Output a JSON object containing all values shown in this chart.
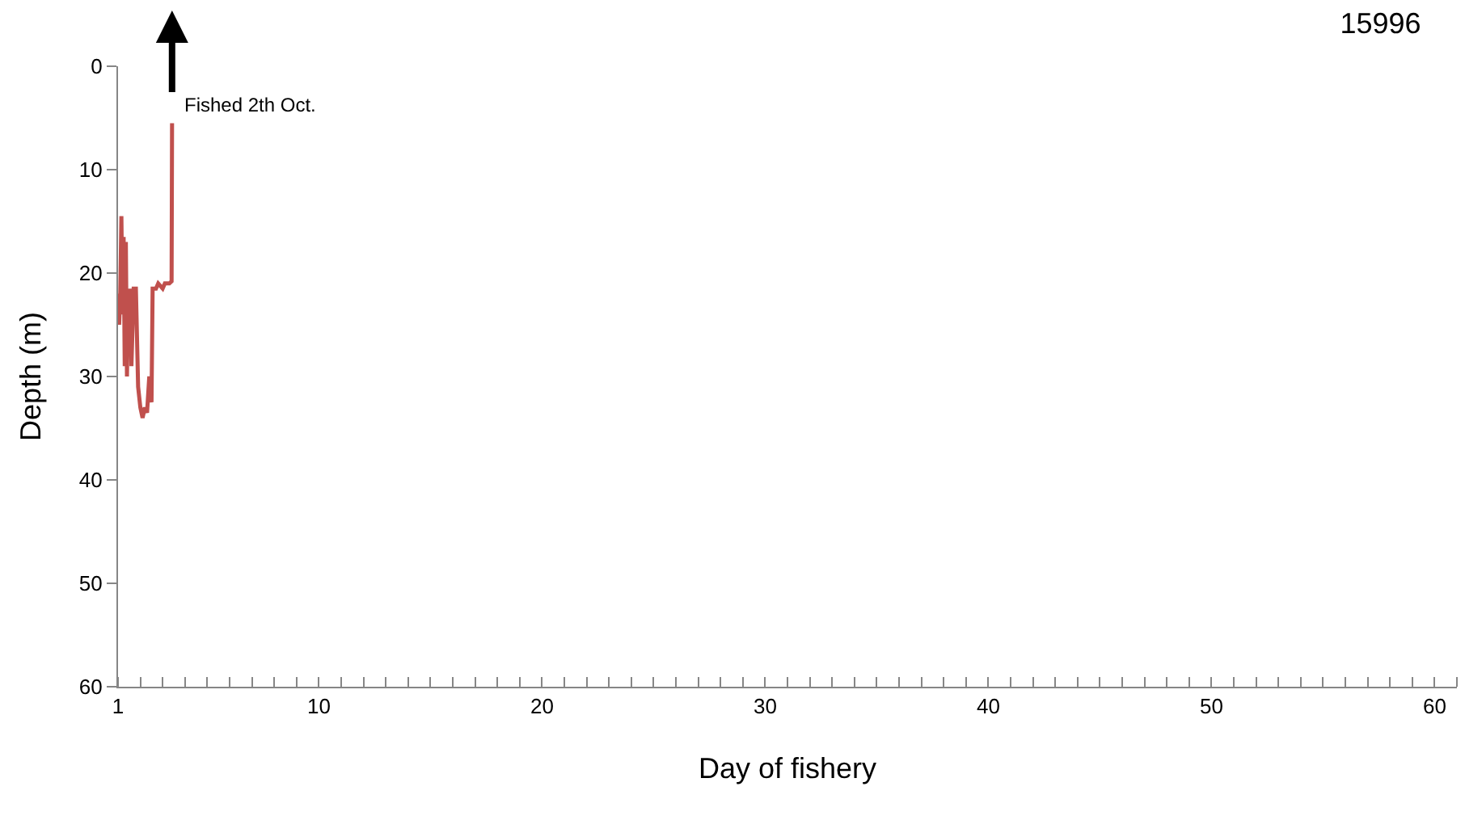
{
  "chart_data": {
    "type": "line",
    "title": "15996",
    "xlabel": "Day of fishery",
    "ylabel": "Depth (m)",
    "x": [
      1.0,
      1.05,
      1.1,
      1.15,
      1.2,
      1.25,
      1.3,
      1.35,
      1.4,
      1.45,
      1.5,
      1.55,
      1.6,
      1.7,
      1.8,
      1.9,
      2.0,
      2.1,
      2.2,
      2.3,
      2.4,
      2.5,
      2.55,
      2.7,
      2.8,
      3.0,
      3.1,
      3.3,
      3.4,
      3.42
    ],
    "series": [
      {
        "color": "#c0504d",
        "values": [
          22,
          25,
          22,
          14.5,
          24,
          16.5,
          29,
          17,
          30,
          22,
          28,
          21.5,
          29,
          21.5,
          21.5,
          31,
          33,
          34,
          33,
          33.5,
          30,
          32.5,
          21.5,
          21.5,
          21,
          21.5,
          21,
          21,
          20.8,
          5.5
        ]
      }
    ],
    "xlim": [
      1,
      61
    ],
    "xticks": [
      1,
      10,
      20,
      30,
      40,
      50,
      60
    ],
    "ylim": [
      60,
      0
    ],
    "yticks": [
      0,
      10,
      20,
      30,
      40,
      50,
      60
    ],
    "marker": "none",
    "line_style": "solid",
    "annotations": [
      {
        "text": "Fished 2th Oct.",
        "x": 3.42,
        "y": 5.5
      }
    ]
  }
}
